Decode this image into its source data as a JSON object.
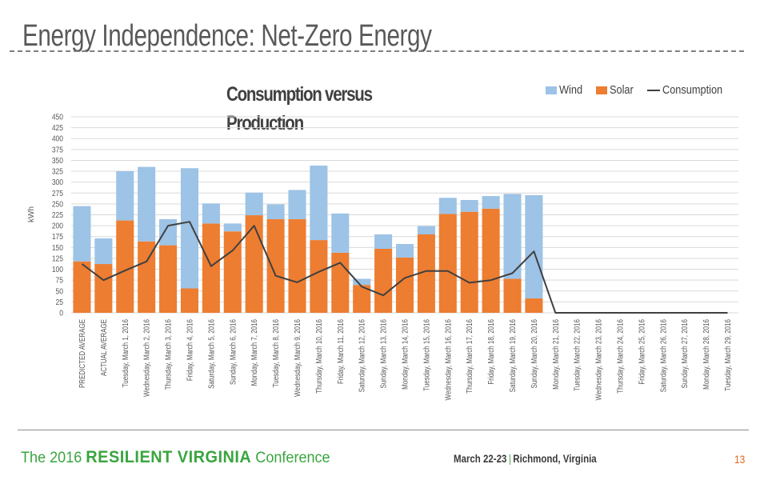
{
  "slide": {
    "title": "Energy Independence: Net-Zero Energy",
    "page_number": "13"
  },
  "footer": {
    "brand_prefix": "The 2016",
    "brand_bold": "RESILIENT VIRGINIA",
    "brand_suffix": "Conference",
    "dates": "March 22-23",
    "location": "Richmond, Virginia",
    "separator": "|"
  },
  "colors": {
    "wind": "#9dc3e6",
    "solar": "#ed7d31",
    "consumption": "#404040",
    "brand_green": "#3aa53f",
    "page_number": "#e0661d"
  },
  "chart_data": {
    "type": "bar",
    "stacked": true,
    "title": "Consumption versus Production",
    "title_lines": [
      "Consumption versus",
      "Production"
    ],
    "xlabel": "",
    "ylabel": "kWh",
    "ylim": [
      0,
      450
    ],
    "yticks": [
      0,
      25,
      50,
      75,
      100,
      125,
      150,
      175,
      200,
      225,
      250,
      275,
      300,
      325,
      350,
      375,
      400,
      425,
      450
    ],
    "grid": true,
    "legend_position": "top-right",
    "legend": [
      "Wind",
      "Solar",
      "Consumption"
    ],
    "categories": [
      "PREDICTED AVERAGE",
      "ACTUAL AVERAGE",
      "Tuesday, March 1, 2016",
      "Wednesday, March 2, 2016",
      "Thursday, March 3, 2016",
      "Friday, March 4, 2016",
      "Saturday, March 5, 2016",
      "Sunday, March 6, 2016",
      "Monday, March 7, 2016",
      "Tuesday, March 8, 2016",
      "Wednesday, March 9, 2016",
      "Thursday, March 10, 2016",
      "Friday, March 11, 2016",
      "Saturday, March 12, 2016",
      "Sunday, March 13, 2016",
      "Monday, March 14, 2016",
      "Tuesday, March 15, 2016",
      "Wednesday, March 16, 2016",
      "Thursday, March 17, 2016",
      "Friday, March 18, 2016",
      "Saturday, March 19, 2016",
      "Sunday, March 20, 2016",
      "Monday, March 21, 2016",
      "Tuesday, March 22, 2016",
      "Wednesday, March 23, 2016",
      "Thursday, March 24, 2016",
      "Friday, March 25, 2016",
      "Saturday, March 26, 2016",
      "Sunday, March 27, 2016",
      "Monday, March 28, 2016",
      "Tuesday, March 29, 2016"
    ],
    "series": [
      {
        "name": "Solar",
        "kind": "bar",
        "values": [
          118,
          112,
          212,
          164,
          155,
          56,
          205,
          187,
          224,
          215,
          215,
          167,
          138,
          64,
          147,
          127,
          180,
          227,
          232,
          239,
          78,
          33,
          0,
          0,
          0,
          0,
          0,
          0,
          0,
          0,
          0
        ]
      },
      {
        "name": "Wind",
        "kind": "bar",
        "values": [
          127,
          59,
          113,
          171,
          60,
          276,
          46,
          18,
          52,
          34,
          67,
          171,
          90,
          14,
          33,
          31,
          19,
          37,
          27,
          29,
          195,
          237,
          0,
          0,
          0,
          0,
          0,
          0,
          0,
          0,
          0
        ]
      },
      {
        "name": "Consumption",
        "kind": "line",
        "values": [
          112,
          75,
          97,
          118,
          200,
          209,
          107,
          143,
          200,
          85,
          70,
          94,
          115,
          60,
          40,
          80,
          96,
          96,
          69,
          75,
          91,
          141,
          0,
          0,
          0,
          0,
          0,
          0,
          0,
          0,
          0
        ]
      }
    ]
  }
}
